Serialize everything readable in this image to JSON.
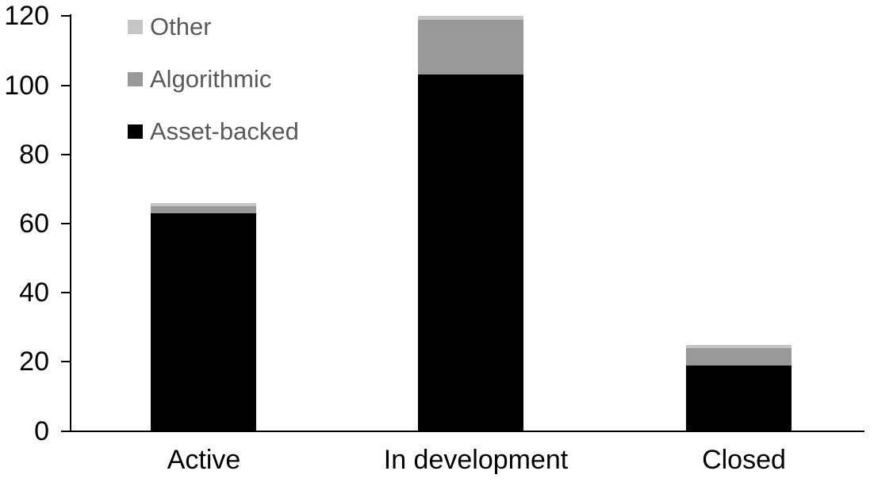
{
  "chart_data": {
    "type": "bar",
    "stacked": true,
    "title": "",
    "xlabel": "",
    "ylabel": "",
    "categories": [
      "Active",
      "In development",
      "Closed"
    ],
    "series": [
      {
        "name": "Asset-backed",
        "color": "#000000",
        "values": [
          63,
          103,
          19
        ]
      },
      {
        "name": "Algorithmic",
        "color": "#999999",
        "values": [
          2,
          16,
          5
        ]
      },
      {
        "name": "Other",
        "color": "#c6c6c6",
        "values": [
          1,
          1,
          1
        ]
      }
    ],
    "totals": [
      66,
      120,
      25
    ],
    "ylim": [
      0,
      120
    ],
    "yticks": [
      0,
      20,
      40,
      60,
      80,
      100,
      120
    ],
    "grid": false,
    "legend_position": "top-left-inside",
    "axis_color": "#000000",
    "legend_text_color": "#595959"
  },
  "legend": {
    "items": [
      {
        "label": "Other",
        "color": "#c6c6c6"
      },
      {
        "label": "Algorithmic",
        "color": "#999999"
      },
      {
        "label": "Asset-backed",
        "color": "#000000"
      }
    ]
  }
}
